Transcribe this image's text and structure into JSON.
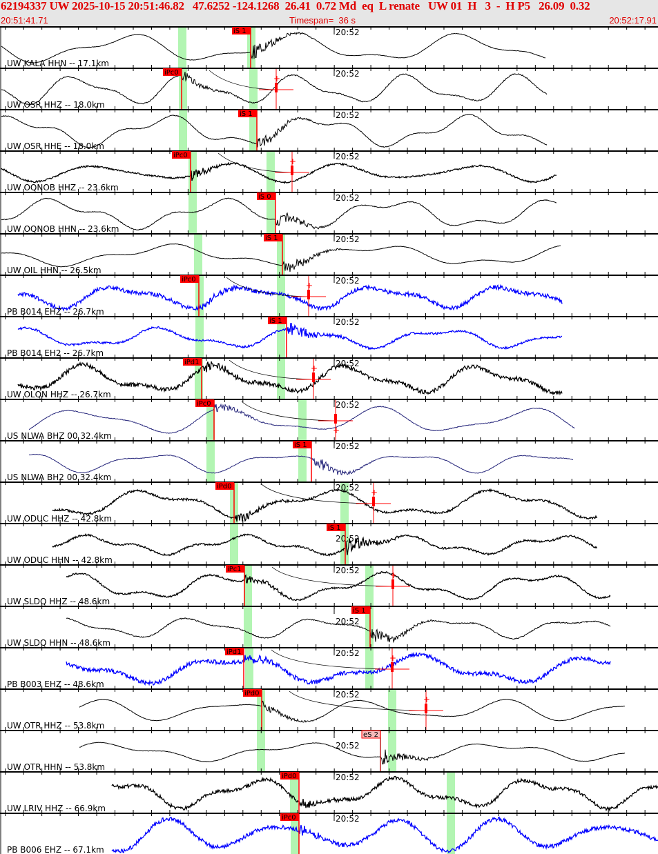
{
  "header": {
    "event_line": "62194337 UW 2025-10-15 20:51:46.82   47.6252 -124.1268  26.41  0.72 Md  eq  L renate   UW 01  H   3  -  H P5   26.09  0.32",
    "start_time": "20:51:41.71",
    "timespan": "Timespan=  36 s",
    "end_time": "20:52:17.91",
    "color": "#e00000"
  },
  "minute_label": "20:52",
  "colors": {
    "pick": "#ff0000",
    "pick_weak": "#f6bcbc",
    "window": "#b2f5b2",
    "black": "#000000",
    "blue": "#0000ff",
    "navy": "#24247a"
  },
  "traces": [
    {
      "label": "UW KALA HHN -- 17.1km",
      "pick": "iS 1",
      "color": "#000000"
    },
    {
      "label": "UW OSR HHZ -- 18.0km",
      "pick": "iPc0",
      "color": "#000000"
    },
    {
      "label": "UW OSR HHE -- 18.0km",
      "pick": "iS 1",
      "color": "#000000"
    },
    {
      "label": "UW OQNOB HHZ -- 23.6km",
      "pick": "iPc0",
      "color": "#000000"
    },
    {
      "label": "UW OQNOB HHN -- 23.6km",
      "pick": "iS 0",
      "color": "#000000"
    },
    {
      "label": "UW OIL HHN -- 26.5km",
      "pick": "iS 1",
      "color": "#000000"
    },
    {
      "label": "PB B014 EHZ -- 26.7km",
      "pick": "iPc0",
      "color": "#0000ff"
    },
    {
      "label": "PB B014 EH2 -- 26.7km",
      "pick": "iS 1",
      "color": "#0000ff"
    },
    {
      "label": "UW OLQN HHZ -- 26.7km",
      "pick": "iPd1",
      "color": "#000000"
    },
    {
      "label": "US NLWA BHZ 00 32.4km",
      "pick": "iPc0",
      "color": "#24247a"
    },
    {
      "label": "US NLWA BH2 00 32.4km",
      "pick": "iS 1",
      "color": "#24247a"
    },
    {
      "label": "UW ODUC HHZ -- 42.8km",
      "pick": "iPd0",
      "color": "#000000"
    },
    {
      "label": "UW ODUC HHN -- 42.8km",
      "pick": "iS 1",
      "color": "#000000"
    },
    {
      "label": "UW SLDQ HHZ -- 48.6km",
      "pick": "iPc1",
      "color": "#000000"
    },
    {
      "label": "UW SLDQ HHN -- 48.6km",
      "pick": "iS 1",
      "color": "#000000"
    },
    {
      "label": "PB B003 EHZ -- 48.6km",
      "pick": "iPd1",
      "color": "#0000ff"
    },
    {
      "label": "UW OTR HHZ -- 53.8km",
      "pick": "iPd0",
      "color": "#000000"
    },
    {
      "label": "UW OTR HHN -- 53.8km",
      "pick": "eS 2",
      "color": "#000000"
    },
    {
      "label": "UW LRIV HHZ -- 66.9km",
      "pick": "iPd0",
      "color": "#000000"
    },
    {
      "label": "PB B006 EHZ -- 67.1km",
      "pick": "iPc0",
      "color": "#0000ff"
    }
  ]
}
